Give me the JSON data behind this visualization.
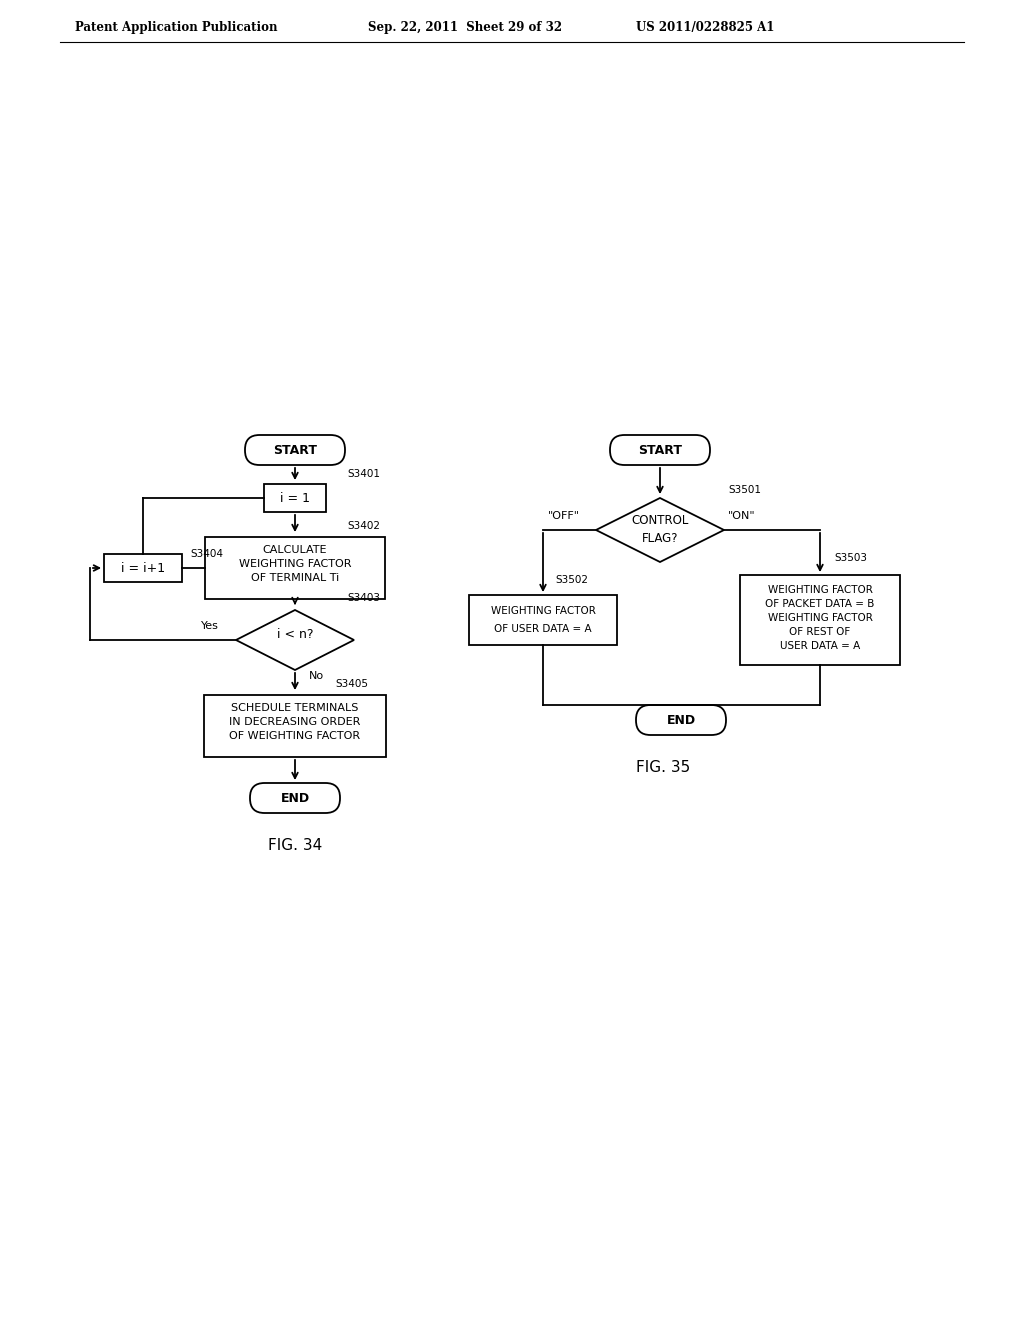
{
  "bg_color": "#ffffff",
  "header_left": "Patent Application Publication",
  "header_mid": "Sep. 22, 2011  Sheet 29 of 32",
  "header_right": "US 2011/0228825 A1"
}
